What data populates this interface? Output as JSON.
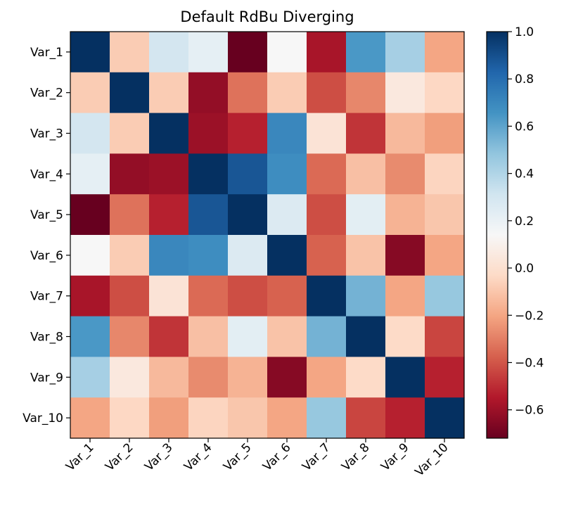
{
  "chart_data": {
    "type": "heatmap",
    "title": "Default RdBu Diverging",
    "xlabel": "",
    "ylabel": "",
    "row_labels": [
      "Var_1",
      "Var_2",
      "Var_3",
      "Var_4",
      "Var_5",
      "Var_6",
      "Var_7",
      "Var_8",
      "Var_9",
      "Var_10"
    ],
    "col_labels": [
      "Var_1",
      "Var_2",
      "Var_3",
      "Var_4",
      "Var_5",
      "Var_6",
      "Var_7",
      "Var_8",
      "Var_9",
      "Var_10"
    ],
    "values": [
      [
        1.0,
        -0.08,
        0.3,
        0.22,
        -0.72,
        0.14,
        -0.57,
        0.64,
        0.43,
        -0.2
      ],
      [
        -0.08,
        1.0,
        -0.08,
        -0.62,
        -0.33,
        -0.08,
        -0.42,
        -0.28,
        0.05,
        -0.04
      ],
      [
        0.3,
        -0.08,
        1.0,
        -0.6,
        -0.53,
        0.7,
        0.02,
        -0.48,
        -0.14,
        -0.22
      ],
      [
        0.22,
        -0.62,
        -0.6,
        1.0,
        0.88,
        0.68,
        -0.35,
        -0.12,
        -0.27,
        -0.05
      ],
      [
        -0.72,
        -0.33,
        -0.53,
        0.88,
        1.0,
        0.26,
        -0.42,
        0.23,
        -0.16,
        -0.1
      ],
      [
        0.14,
        -0.08,
        0.7,
        0.68,
        0.26,
        1.0,
        -0.37,
        -0.11,
        -0.65,
        -0.2
      ],
      [
        -0.57,
        -0.42,
        0.02,
        -0.35,
        -0.42,
        -0.37,
        1.0,
        0.55,
        -0.2,
        0.47
      ],
      [
        0.64,
        -0.28,
        -0.48,
        -0.12,
        0.23,
        -0.11,
        0.55,
        1.0,
        -0.03,
        -0.44
      ],
      [
        0.43,
        0.05,
        -0.14,
        -0.27,
        -0.16,
        -0.65,
        -0.2,
        -0.03,
        1.0,
        -0.53
      ],
      [
        -0.2,
        -0.04,
        -0.22,
        -0.05,
        -0.1,
        -0.2,
        0.47,
        -0.44,
        -0.53,
        1.0
      ]
    ],
    "colormap": "RdBu",
    "vmin": -0.72,
    "vmax": 1.0,
    "colorbar_ticks": [
      "1.0",
      "0.8",
      "0.6",
      "0.4",
      "0.2",
      "0.0",
      "−0.2",
      "−0.4",
      "−0.6"
    ],
    "colorbar_tick_values": [
      1.0,
      0.8,
      0.6,
      0.4,
      0.2,
      0.0,
      -0.2,
      -0.4,
      -0.6
    ],
    "grid": false,
    "legend": "colorbar right"
  }
}
